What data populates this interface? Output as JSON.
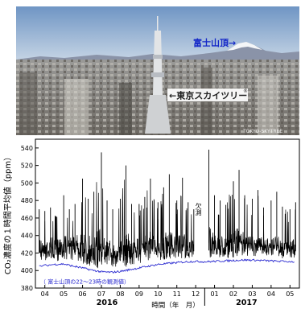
{
  "photo": {
    "fuji_label": "富士山頂→",
    "tower_label": "←東京スカイツリー",
    "tower_mark": "®",
    "credit": "TOKYO-SKYTREE",
    "colors": {
      "sky_top": "#6f95c4",
      "sky_bottom": "#c7d6e6",
      "mountains": "#8a93a8",
      "snow": "#f4f6f8",
      "city": "#8d8a84",
      "label_blue": "#1428c8"
    }
  },
  "chart_data": {
    "type": "line",
    "ylabel": "CO₂濃度の１時間平均値（ppm）",
    "xlabel": "時間（年　月）",
    "ylim": [
      380,
      550
    ],
    "yticks": [
      380,
      400,
      420,
      440,
      460,
      480,
      500,
      520,
      540
    ],
    "month_ticks": [
      "04",
      "05",
      "06",
      "07",
      "08",
      "09",
      "10",
      "11",
      "12",
      "01",
      "02",
      "03",
      "04",
      "05"
    ],
    "year_labels": [
      {
        "label": "2016",
        "at_month_index": 3.3
      },
      {
        "label": "2017",
        "at_month_index": 10.7
      }
    ],
    "gap_label": "欠測",
    "gap_month_index": [
      7.9,
      8.4
    ],
    "series": [
      {
        "color": "#000000",
        "kind": "hourly_envelope",
        "x_month_index": [
          -0.3,
          0.0,
          0.3,
          0.6,
          1.0,
          1.3,
          1.6,
          2.0,
          2.3,
          2.6,
          3.0,
          3.3,
          3.6,
          4.0,
          4.3,
          4.6,
          5.0,
          5.3,
          5.6,
          6.0,
          6.3,
          6.6,
          7.0,
          7.3,
          7.6,
          7.9,
          8.4,
          8.7,
          9.0,
          9.3,
          9.6,
          10.0,
          10.3,
          10.6,
          11.0,
          11.3,
          11.6,
          12.0,
          12.3,
          12.6,
          13.0,
          13.3
        ],
        "max": [
          470,
          468,
          472,
          462,
          486,
          470,
          476,
          505,
          482,
          490,
          535,
          480,
          470,
          482,
          520,
          476,
          476,
          484,
          505,
          478,
          495,
          510,
          480,
          506,
          478,
          470,
          null,
          538,
          486,
          480,
          475,
          502,
          515,
          486,
          482,
          492,
          472,
          480,
          490,
          473,
          470,
          478
        ],
        "upper": [
          438,
          436,
          440,
          434,
          445,
          438,
          440,
          448,
          440,
          442,
          452,
          438,
          435,
          438,
          450,
          436,
          437,
          440,
          446,
          438,
          442,
          447,
          438,
          444,
          438,
          436,
          null,
          452,
          442,
          440,
          438,
          446,
          450,
          442,
          440,
          442,
          436,
          438,
          440,
          436,
          435,
          437
        ],
        "lower": [
          412,
          411,
          412,
          410,
          413,
          412,
          410,
          408,
          405,
          403,
          402,
          404,
          404,
          403,
          404,
          407,
          408,
          410,
          411,
          412,
          412,
          413,
          413,
          414,
          414,
          414,
          null,
          415,
          415,
          415,
          414,
          415,
          414,
          414,
          414,
          415,
          415,
          415,
          415,
          414,
          414,
          414
        ]
      },
      {
        "color": "#2a2ad0",
        "kind": "line",
        "x_month_index": [
          -0.3,
          0.5,
          1.0,
          1.5,
          2.0,
          2.5,
          3.0,
          3.5,
          4.0,
          4.5,
          5.0,
          5.5,
          6.0,
          6.5,
          7.0,
          7.5,
          8.0,
          8.5,
          9.0,
          9.5,
          10.0,
          10.5,
          11.0,
          11.5,
          12.0,
          12.5,
          13.3
        ],
        "values": [
          405,
          407,
          407.5,
          405,
          403,
          400.5,
          398.5,
          398,
          399,
          401,
          403,
          405,
          407,
          408,
          409,
          410,
          410.5,
          410,
          410.5,
          411,
          411.5,
          412,
          412,
          411.5,
          411,
          410.5,
          410
        ],
        "legend": "（ 富士山頂の22～23時の観測値）"
      }
    ]
  }
}
